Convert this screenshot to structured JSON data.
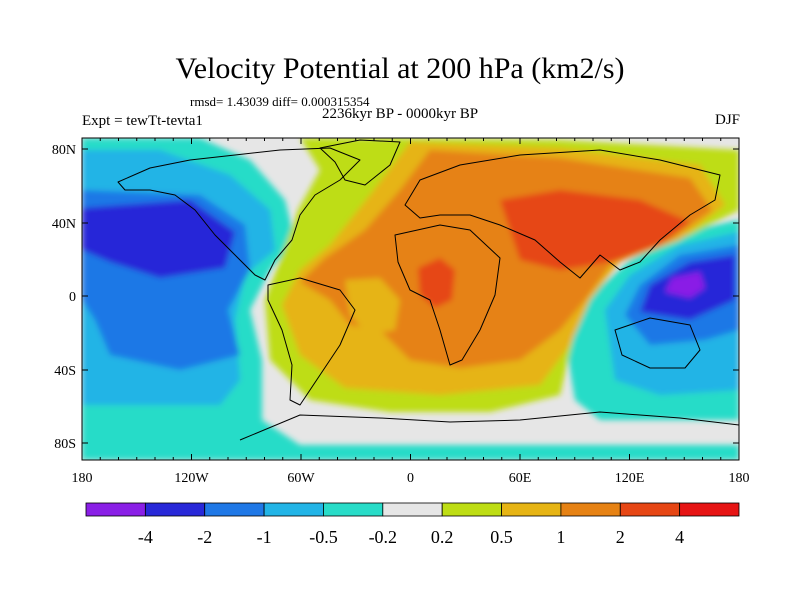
{
  "header": {
    "title": "Velocity Potential at 200 hPa (km2/s)",
    "stats": "rmsd= 1.43039 diff= 0.000315354",
    "experiment": "Expt = tewTt-tevta1",
    "period": "2236kyr BP - 0000kyr BP",
    "season": "DJF"
  },
  "axes": {
    "x_ticks": [
      "180",
      "120W",
      "60W",
      "0",
      "60E",
      "120E",
      "180"
    ],
    "y_ticks": [
      "80N",
      "40N",
      "0",
      "40S",
      "80S"
    ]
  },
  "colorbar": {
    "colors": [
      "#8a1fe6",
      "#2828d8",
      "#1f78e6",
      "#22b4e6",
      "#28dcc8",
      "#e6e6e6",
      "#bedd14",
      "#e6b414",
      "#e68214",
      "#e64614",
      "#e61414"
    ],
    "labels": [
      "-4",
      "-2",
      "-1",
      "-0.5",
      "-0.2",
      "0.2",
      "0.5",
      "1",
      "2",
      "4"
    ]
  }
}
